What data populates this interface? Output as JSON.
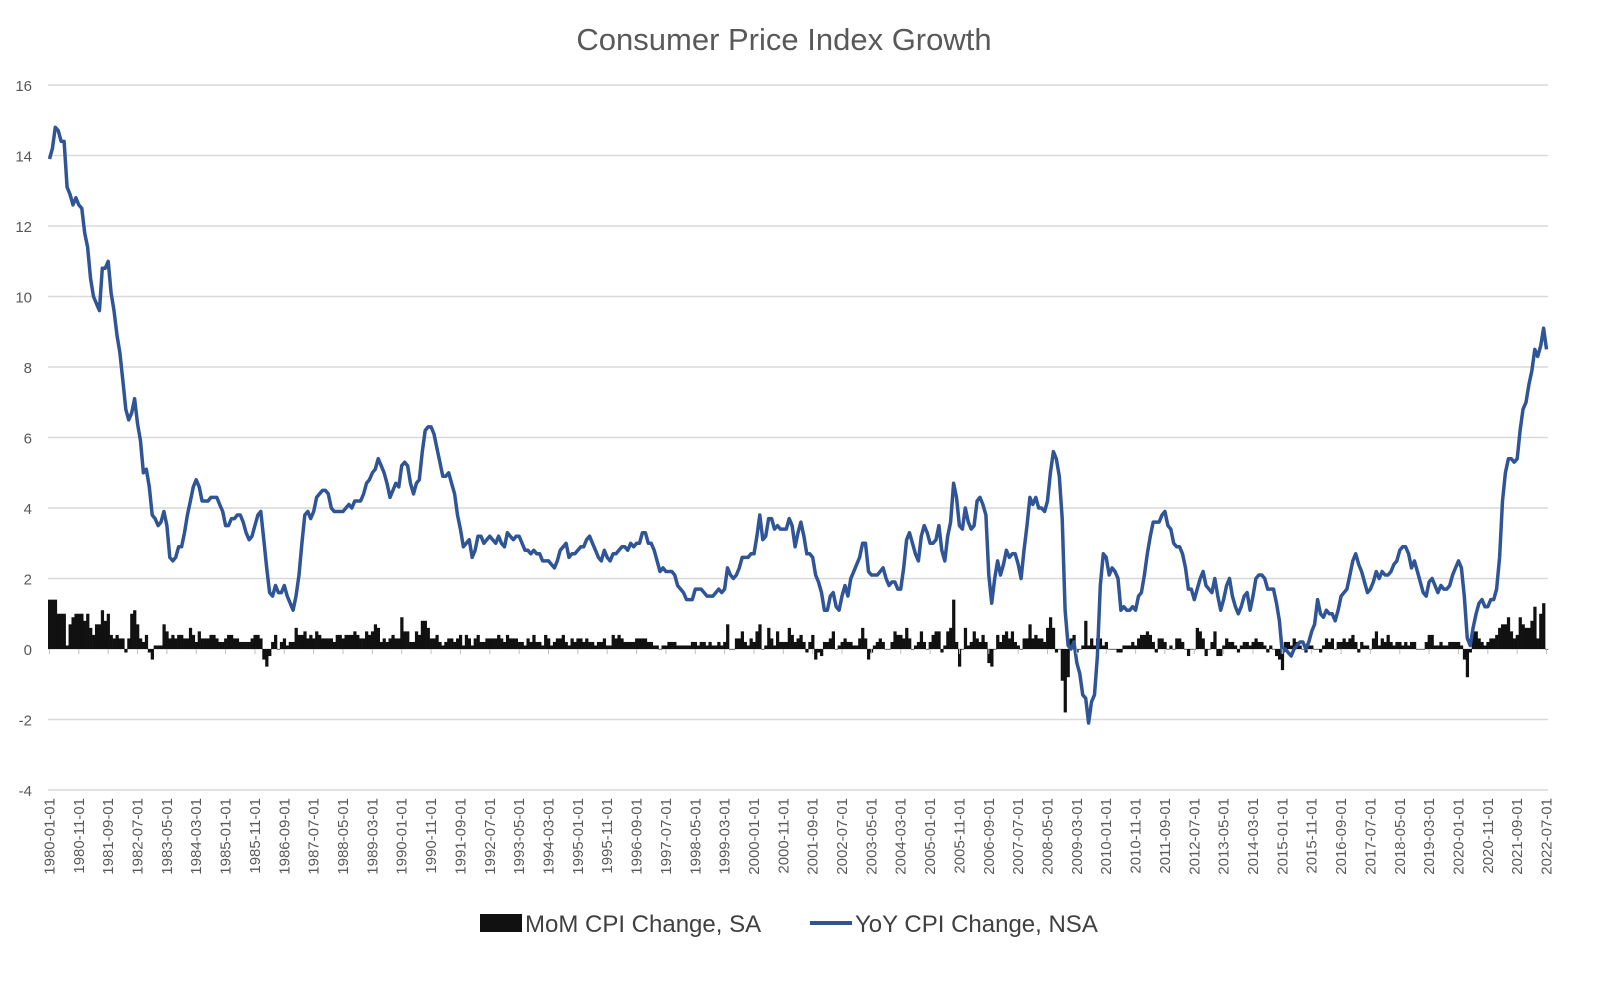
{
  "chart_data": {
    "type": "bar+line",
    "title": "Consumer Price Index Growth",
    "xlabel": "",
    "ylabel": "",
    "ylim": [
      -4,
      16
    ],
    "y_ticks": [
      16,
      14,
      12,
      10,
      8,
      6,
      4,
      2,
      0,
      -2,
      -4
    ],
    "grid": "horizontal",
    "legend_position": "bottom",
    "x_frequency": "monthly",
    "x_tick_labels": [
      "1980-01-01",
      "1980-11-01",
      "1981-09-01",
      "1982-07-01",
      "1983-05-01",
      "1984-03-01",
      "1985-01-01",
      "1985-11-01",
      "1986-09-01",
      "1987-07-01",
      "1988-05-01",
      "1989-03-01",
      "1990-01-01",
      "1990-11-01",
      "1991-09-01",
      "1992-07-01",
      "1993-05-01",
      "1994-03-01",
      "1995-01-01",
      "1995-11-01",
      "1996-09-01",
      "1997-07-01",
      "1998-05-01",
      "1999-03-01",
      "2000-01-01",
      "2000-11-01",
      "2001-09-01",
      "2002-07-01",
      "2003-05-01",
      "2004-03-01",
      "2005-01-01",
      "2005-11-01",
      "2006-09-01",
      "2007-07-01",
      "2008-05-01",
      "2009-03-01",
      "2010-01-01",
      "2010-11-01",
      "2011-09-01",
      "2012-07-01",
      "2013-05-01",
      "2014-03-01",
      "2015-01-01",
      "2015-11-01",
      "2016-09-01",
      "2017-07-01",
      "2018-05-01",
      "2019-03-01",
      "2020-01-01",
      "2020-11-01",
      "2021-09-01",
      "2022-07-01"
    ],
    "series": [
      {
        "name": "MoM CPI Change, SA",
        "type": "bar",
        "color": "#111111",
        "values": [
          1.4,
          1.4,
          1.4,
          1.0,
          1.0,
          1.0,
          0.1,
          0.7,
          0.9,
          1.0,
          1.0,
          1.0,
          0.8,
          1.0,
          0.6,
          0.4,
          0.7,
          0.7,
          1.1,
          0.8,
          1.0,
          0.4,
          0.3,
          0.4,
          0.3,
          0.3,
          -0.1,
          0.3,
          1.0,
          1.1,
          0.7,
          0.3,
          0.2,
          0.4,
          -0.1,
          -0.3,
          0.1,
          0.1,
          0.1,
          0.7,
          0.5,
          0.3,
          0.4,
          0.3,
          0.4,
          0.4,
          0.3,
          0.3,
          0.6,
          0.4,
          0.2,
          0.5,
          0.3,
          0.3,
          0.3,
          0.4,
          0.4,
          0.3,
          0.2,
          0.2,
          0.3,
          0.4,
          0.4,
          0.3,
          0.3,
          0.2,
          0.2,
          0.2,
          0.2,
          0.3,
          0.4,
          0.4,
          0.3,
          -0.3,
          -0.5,
          -0.2,
          0.2,
          0.4,
          0.0,
          0.2,
          0.3,
          0.1,
          0.2,
          0.2,
          0.6,
          0.4,
          0.4,
          0.5,
          0.3,
          0.4,
          0.3,
          0.5,
          0.4,
          0.3,
          0.3,
          0.3,
          0.3,
          0.2,
          0.4,
          0.4,
          0.3,
          0.4,
          0.4,
          0.4,
          0.5,
          0.4,
          0.3,
          0.3,
          0.5,
          0.4,
          0.5,
          0.7,
          0.6,
          0.2,
          0.3,
          0.2,
          0.3,
          0.4,
          0.3,
          0.3,
          0.9,
          0.5,
          0.5,
          0.2,
          0.2,
          0.5,
          0.4,
          0.8,
          0.8,
          0.6,
          0.3,
          0.3,
          0.4,
          0.2,
          0.1,
          0.2,
          0.3,
          0.3,
          0.2,
          0.3,
          0.4,
          0.1,
          0.4,
          0.3,
          0.1,
          0.3,
          0.4,
          0.2,
          0.2,
          0.3,
          0.3,
          0.3,
          0.3,
          0.4,
          0.3,
          0.2,
          0.4,
          0.3,
          0.3,
          0.3,
          0.2,
          0.2,
          0.1,
          0.3,
          0.2,
          0.4,
          0.2,
          0.2,
          0.1,
          0.4,
          0.3,
          0.1,
          0.2,
          0.3,
          0.3,
          0.4,
          0.2,
          0.1,
          0.3,
          0.2,
          0.3,
          0.3,
          0.2,
          0.3,
          0.2,
          0.2,
          0.1,
          0.2,
          0.2,
          0.3,
          0.1,
          0.1,
          0.4,
          0.3,
          0.4,
          0.3,
          0.2,
          0.2,
          0.2,
          0.2,
          0.3,
          0.3,
          0.3,
          0.3,
          0.2,
          0.2,
          0.1,
          0.1,
          0.0,
          0.1,
          0.1,
          0.2,
          0.2,
          0.2,
          0.1,
          0.1,
          0.1,
          0.1,
          0.1,
          0.2,
          0.2,
          0.1,
          0.2,
          0.2,
          0.1,
          0.2,
          0.1,
          0.1,
          0.2,
          0.1,
          0.2,
          0.7,
          0.0,
          0.0,
          0.3,
          0.3,
          0.5,
          0.2,
          0.1,
          0.3,
          0.2,
          0.5,
          0.7,
          0.0,
          0.1,
          0.6,
          0.3,
          0.1,
          0.5,
          0.2,
          0.2,
          0.2,
          0.6,
          0.4,
          0.2,
          0.3,
          0.4,
          0.2,
          -0.1,
          0.2,
          0.4,
          -0.3,
          -0.1,
          -0.2,
          0.2,
          0.2,
          0.3,
          0.5,
          0.0,
          0.1,
          0.2,
          0.3,
          0.2,
          0.2,
          0.1,
          0.1,
          0.3,
          0.6,
          0.3,
          -0.3,
          -0.1,
          0.1,
          0.2,
          0.3,
          0.2,
          0.0,
          0.0,
          0.2,
          0.5,
          0.4,
          0.4,
          0.3,
          0.6,
          0.3,
          0.0,
          0.1,
          0.2,
          0.5,
          0.2,
          0.0,
          0.2,
          0.4,
          0.5,
          0.5,
          -0.1,
          0.1,
          0.5,
          0.6,
          1.4,
          0.2,
          -0.5,
          0.0,
          0.6,
          0.1,
          0.2,
          0.5,
          0.3,
          0.2,
          0.4,
          0.2,
          -0.4,
          -0.5,
          0.0,
          0.4,
          0.2,
          0.4,
          0.5,
          0.3,
          0.5,
          0.2,
          0.1,
          0.0,
          0.3,
          0.3,
          0.7,
          0.3,
          0.4,
          0.3,
          0.3,
          0.2,
          0.6,
          0.9,
          0.6,
          -0.1,
          0.0,
          -0.9,
          -1.8,
          -0.8,
          0.3,
          0.4,
          -0.1,
          0.0,
          0.1,
          0.8,
          0.1,
          0.3,
          0.1,
          0.3,
          0.3,
          0.1,
          0.2,
          0.0,
          0.0,
          0.0,
          -0.1,
          -0.1,
          0.1,
          0.1,
          0.1,
          0.2,
          0.1,
          0.3,
          0.4,
          0.4,
          0.5,
          0.4,
          0.2,
          -0.1,
          0.3,
          0.3,
          0.2,
          0.0,
          0.1,
          0.0,
          0.3,
          0.3,
          0.2,
          0.0,
          -0.2,
          0.0,
          0.0,
          0.6,
          0.5,
          0.3,
          -0.2,
          0.0,
          0.2,
          0.5,
          -0.2,
          -0.2,
          0.1,
          0.3,
          0.2,
          0.2,
          0.1,
          -0.1,
          0.1,
          0.2,
          0.2,
          0.1,
          0.2,
          0.3,
          0.2,
          0.2,
          0.1,
          -0.1,
          0.1,
          0.0,
          -0.2,
          -0.3,
          -0.6,
          0.2,
          0.2,
          0.1,
          0.3,
          0.2,
          0.1,
          0.0,
          -0.1,
          0.1,
          0.1,
          0.0,
          0.0,
          -0.1,
          0.1,
          0.3,
          0.2,
          0.3,
          0.0,
          0.2,
          0.2,
          0.3,
          0.2,
          0.3,
          0.4,
          0.2,
          -0.1,
          0.2,
          0.1,
          0.1,
          0.0,
          0.3,
          0.5,
          0.1,
          0.3,
          0.2,
          0.4,
          0.2,
          0.1,
          0.2,
          0.2,
          0.1,
          0.2,
          0.1,
          0.2,
          0.2,
          0.0,
          0.0,
          0.0,
          0.2,
          0.4,
          0.4,
          0.1,
          0.1,
          0.2,
          0.1,
          0.1,
          0.2,
          0.2,
          0.2,
          0.2,
          0.1,
          -0.3,
          -0.8,
          -0.1,
          0.5,
          0.5,
          0.3,
          0.2,
          0.1,
          0.2,
          0.3,
          0.3,
          0.4,
          0.6,
          0.7,
          0.7,
          0.9,
          0.5,
          0.3,
          0.4,
          0.9,
          0.7,
          0.6,
          0.6,
          0.8,
          1.2,
          0.3,
          1.0,
          1.3,
          0.0
        ]
      },
      {
        "name": "YoY CPI Change, NSA",
        "type": "line",
        "color": "#2f5597",
        "values": [
          13.9,
          14.2,
          14.8,
          14.7,
          14.4,
          14.4,
          13.1,
          12.9,
          12.6,
          12.8,
          12.6,
          12.5,
          11.8,
          11.4,
          10.5,
          10.0,
          9.8,
          9.6,
          10.8,
          10.8,
          11.0,
          10.1,
          9.6,
          8.9,
          8.4,
          7.6,
          6.8,
          6.5,
          6.7,
          7.1,
          6.4,
          5.9,
          5.0,
          5.1,
          4.6,
          3.8,
          3.7,
          3.5,
          3.6,
          3.9,
          3.5,
          2.6,
          2.5,
          2.6,
          2.9,
          2.9,
          3.3,
          3.8,
          4.2,
          4.6,
          4.8,
          4.6,
          4.2,
          4.2,
          4.2,
          4.3,
          4.3,
          4.3,
          4.1,
          3.9,
          3.5,
          3.5,
          3.7,
          3.7,
          3.8,
          3.8,
          3.6,
          3.3,
          3.1,
          3.2,
          3.5,
          3.8,
          3.9,
          3.1,
          2.3,
          1.6,
          1.5,
          1.8,
          1.6,
          1.6,
          1.8,
          1.5,
          1.3,
          1.1,
          1.5,
          2.1,
          3.0,
          3.8,
          3.9,
          3.7,
          3.9,
          4.3,
          4.4,
          4.5,
          4.5,
          4.4,
          4.0,
          3.9,
          3.9,
          3.9,
          3.9,
          4.0,
          4.1,
          4.0,
          4.2,
          4.2,
          4.2,
          4.4,
          4.7,
          4.8,
          5.0,
          5.1,
          5.4,
          5.2,
          5.0,
          4.7,
          4.3,
          4.5,
          4.7,
          4.6,
          5.2,
          5.3,
          5.2,
          4.7,
          4.4,
          4.7,
          4.8,
          5.6,
          6.2,
          6.3,
          6.3,
          6.1,
          5.7,
          5.3,
          4.9,
          4.9,
          5.0,
          4.7,
          4.4,
          3.8,
          3.4,
          2.9,
          3.0,
          3.1,
          2.6,
          2.8,
          3.2,
          3.2,
          3.0,
          3.1,
          3.2,
          3.1,
          3.0,
          3.2,
          3.0,
          2.9,
          3.3,
          3.2,
          3.1,
          3.2,
          3.2,
          3.0,
          2.8,
          2.8,
          2.7,
          2.8,
          2.7,
          2.7,
          2.5,
          2.5,
          2.5,
          2.4,
          2.3,
          2.5,
          2.8,
          2.9,
          3.0,
          2.6,
          2.7,
          2.7,
          2.8,
          2.9,
          2.9,
          3.1,
          3.2,
          3.0,
          2.8,
          2.6,
          2.5,
          2.8,
          2.6,
          2.5,
          2.7,
          2.7,
          2.8,
          2.9,
          2.9,
          2.8,
          3.0,
          2.9,
          3.0,
          3.0,
          3.3,
          3.3,
          3.0,
          3.0,
          2.8,
          2.5,
          2.2,
          2.3,
          2.2,
          2.2,
          2.2,
          2.1,
          1.8,
          1.7,
          1.6,
          1.4,
          1.4,
          1.4,
          1.7,
          1.7,
          1.7,
          1.6,
          1.5,
          1.5,
          1.5,
          1.6,
          1.7,
          1.6,
          1.7,
          2.3,
          2.1,
          2.0,
          2.1,
          2.3,
          2.6,
          2.6,
          2.6,
          2.7,
          2.7,
          3.2,
          3.8,
          3.1,
          3.2,
          3.7,
          3.7,
          3.4,
          3.5,
          3.4,
          3.4,
          3.4,
          3.7,
          3.5,
          2.9,
          3.3,
          3.6,
          3.2,
          2.7,
          2.7,
          2.6,
          2.1,
          1.9,
          1.6,
          1.1,
          1.1,
          1.5,
          1.6,
          1.2,
          1.1,
          1.5,
          1.8,
          1.5,
          2.0,
          2.2,
          2.4,
          2.6,
          3.0,
          3.0,
          2.2,
          2.1,
          2.1,
          2.1,
          2.2,
          2.3,
          2.0,
          1.8,
          1.9,
          1.9,
          1.7,
          1.7,
          2.3,
          3.1,
          3.3,
          3.0,
          2.7,
          2.5,
          3.2,
          3.5,
          3.3,
          3.0,
          3.0,
          3.1,
          3.5,
          2.8,
          2.5,
          3.2,
          3.6,
          4.7,
          4.3,
          3.5,
          3.4,
          4.0,
          3.6,
          3.4,
          3.5,
          4.2,
          4.3,
          4.1,
          3.8,
          2.1,
          1.3,
          2.0,
          2.5,
          2.1,
          2.4,
          2.8,
          2.6,
          2.7,
          2.7,
          2.4,
          2.0,
          2.8,
          3.5,
          4.3,
          4.1,
          4.3,
          4.0,
          4.0,
          3.9,
          4.2,
          5.0,
          5.6,
          5.4,
          4.9,
          3.7,
          1.1,
          0.1,
          0.0,
          0.2,
          -0.4,
          -0.7,
          -1.3,
          -1.4,
          -2.1,
          -1.5,
          -1.3,
          -0.2,
          1.8,
          2.7,
          2.6,
          2.1,
          2.3,
          2.2,
          2.0,
          1.1,
          1.2,
          1.1,
          1.1,
          1.2,
          1.1,
          1.5,
          1.6,
          2.1,
          2.7,
          3.2,
          3.6,
          3.6,
          3.6,
          3.8,
          3.9,
          3.5,
          3.4,
          3.0,
          2.9,
          2.9,
          2.7,
          2.3,
          1.7,
          1.7,
          1.4,
          1.7,
          2.0,
          2.2,
          1.8,
          1.7,
          1.6,
          2.0,
          1.5,
          1.1,
          1.4,
          1.8,
          2.0,
          1.5,
          1.2,
          1.0,
          1.2,
          1.5,
          1.6,
          1.1,
          1.5,
          2.0,
          2.1,
          2.1,
          2.0,
          1.7,
          1.7,
          1.7,
          1.3,
          0.8,
          -0.1,
          0.0,
          -0.1,
          -0.2,
          0.0,
          0.1,
          0.2,
          0.2,
          0.0,
          0.2,
          0.5,
          0.7,
          1.4,
          1.0,
          0.9,
          1.1,
          1.0,
          1.0,
          0.8,
          1.1,
          1.5,
          1.6,
          1.7,
          2.1,
          2.5,
          2.7,
          2.4,
          2.2,
          1.9,
          1.6,
          1.7,
          1.9,
          2.2,
          2.0,
          2.2,
          2.1,
          2.1,
          2.2,
          2.4,
          2.5,
          2.8,
          2.9,
          2.9,
          2.7,
          2.3,
          2.5,
          2.2,
          1.9,
          1.6,
          1.5,
          1.9,
          2.0,
          1.8,
          1.6,
          1.8,
          1.7,
          1.7,
          1.8,
          2.1,
          2.3,
          2.5,
          2.3,
          1.5,
          0.3,
          0.1,
          0.6,
          1.0,
          1.3,
          1.4,
          1.2,
          1.2,
          1.4,
          1.4,
          1.7,
          2.6,
          4.2,
          5.0,
          5.4,
          5.4,
          5.3,
          5.4,
          6.2,
          6.8,
          7.0,
          7.5,
          7.9,
          8.5,
          8.3,
          8.6,
          9.1,
          8.5
        ]
      }
    ],
    "gridline_color": "#d9d9d9",
    "text_color": "#595959"
  }
}
